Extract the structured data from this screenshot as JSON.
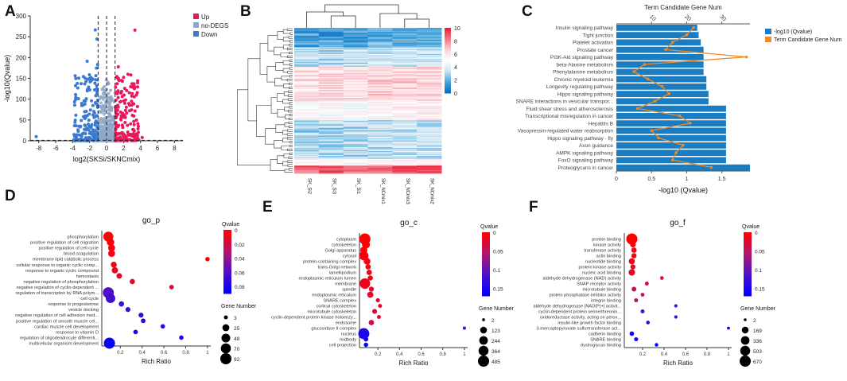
{
  "panel_labels": [
    "A",
    "B",
    "C",
    "D",
    "E",
    "F"
  ],
  "chart_data": [
    {
      "panel": "A",
      "type": "scatter",
      "title": "",
      "xlabel": "log2(SKSi/SKNCmix)",
      "ylabel": "-log10(Qvalue)",
      "xlim": [
        -9,
        9
      ],
      "ylim": [
        0,
        300
      ],
      "xticks": [
        "-8",
        "-6",
        "-4",
        "-2",
        "0",
        "2",
        "4",
        "6",
        "8"
      ],
      "yticks": [
        "0",
        "50",
        "100",
        "150",
        "200",
        "250",
        "300"
      ],
      "threshold_x": [
        -1,
        1
      ],
      "threshold_y": 1.3,
      "legend": [
        {
          "label": "Up",
          "color": "#e8185a"
        },
        {
          "label": "no-DEGS",
          "color": "#8fa8c8"
        },
        {
          "label": "Down",
          "color": "#3a7ad1"
        }
      ]
    },
    {
      "panel": "B",
      "type": "heatmap",
      "columns": [
        "SK_Si2",
        "SK_Si3",
        "SK_Si1",
        "SK_NCmix1",
        "SK_NCmix3",
        "SK_NCmix2"
      ],
      "colorbar_ticks": [
        "10",
        "8",
        "6",
        "4",
        "2",
        "0"
      ],
      "colorbar_range": [
        0,
        10
      ]
    },
    {
      "panel": "C",
      "type": "bar",
      "title": "Term Candidate Gene Num",
      "xlabel": "-log10 (Qvalue)",
      "xticks": [
        "0",
        "0.5",
        "1",
        "1.5"
      ],
      "top_ticks": [
        "10",
        "20",
        "30"
      ],
      "xlim": [
        0,
        1.9
      ],
      "top_lim": [
        0,
        38
      ],
      "legend": [
        "-log10 (Qvalue)",
        "Term Candidate Gene Num"
      ],
      "colors": {
        "bar": "#1a7cc1",
        "line": "#f08a24"
      },
      "categories": [
        "Insulin signaling pathway",
        "Tight junction",
        "Platelet activation",
        "Prostate cancer",
        "PI3K-Akt signaling pathway",
        "beta-Alanine metabolism",
        "Phenylalanine metabolism",
        "Chronic myeloid leukemia",
        "Longevity regulating pathway",
        "Hippo signaling pathway",
        "SNARE interactions in vesicular transpor...",
        "Fluid shear stress and atherosclerosis",
        "Transcriptional misregulation in cancer",
        "Hepatitis B",
        "Vasopressin-regulated water reabsorption",
        "Hippo signaling pathway - fly",
        "Axon guidance",
        "AMPK signaling pathway",
        "FoxO signaling pathway",
        "Proteoglycans in cancer"
      ],
      "values": [
        1.15,
        1.17,
        1.2,
        1.24,
        1.24,
        1.24,
        1.24,
        1.28,
        1.28,
        1.31,
        1.31,
        1.56,
        1.56,
        1.56,
        1.56,
        1.56,
        1.56,
        1.56,
        1.56,
        1.9
      ],
      "gene_num": [
        22,
        20,
        16,
        14,
        37,
        8,
        5,
        9,
        13,
        15,
        11,
        6,
        18,
        21,
        10,
        12,
        19,
        17,
        16,
        27
      ]
    },
    {
      "panel": "D",
      "type": "scatter",
      "title": "go_p",
      "xlabel": "Rich Ratio",
      "xticks": [
        "0.2",
        "0.4",
        "0.6",
        "0.8",
        "1"
      ],
      "xlim": [
        0.03,
        1.03
      ],
      "cbar_title": "Qvalue",
      "cbar_ticks": [
        "0",
        "0.02",
        "0.04",
        "0.06",
        "0.08"
      ],
      "cbar_max": 0.09,
      "size_title": "Gene Number",
      "size_ticks": [
        3,
        25,
        48,
        70,
        92
      ],
      "size_max": 92,
      "terms": [
        "phosphorylation",
        "positive regulation of cell migration",
        "positive regulation of cell cycle",
        "blood coagulation",
        "membrane lipid catabolic process",
        "cellular response to organic cyclic comp...",
        "response to organic cyclic compound",
        "hemostasis",
        "negative regulation of phosphorylation",
        "negative regulation of cyclin-dependent ...",
        "regulation of transcription by RNA polym...",
        "cell cycle",
        "response to progesterone",
        "vesicle docking",
        "negative regulation of cell adhesion med...",
        "positive regulation of smooth muscle cel...",
        "cardiac muscle cell development",
        "response to vitamin D",
        "regulation of oligodendrocyte differenti...",
        "multicellular organism development"
      ],
      "rich": [
        0.09,
        0.11,
        0.12,
        0.12,
        1.0,
        0.14,
        0.15,
        0.19,
        0.31,
        0.67,
        0.09,
        0.11,
        0.21,
        0.27,
        0.39,
        0.41,
        0.59,
        0.34,
        0.76,
        0.1
      ],
      "q": [
        0.001,
        0.002,
        0.003,
        0.004,
        0.0,
        0.006,
        0.008,
        0.01,
        0.012,
        0.015,
        0.06,
        0.065,
        0.068,
        0.07,
        0.072,
        0.074,
        0.076,
        0.078,
        0.08,
        0.088
      ],
      "genes": [
        70,
        30,
        25,
        25,
        5,
        15,
        18,
        12,
        10,
        6,
        90,
        60,
        10,
        8,
        8,
        6,
        5,
        6,
        5,
        92
      ]
    },
    {
      "panel": "E",
      "type": "scatter",
      "title": "go_c",
      "xlabel": "Rich Ratio",
      "xticks": [
        "0.2",
        "0.4",
        "0.6",
        "0.8",
        "1"
      ],
      "xlim": [
        0.03,
        1.03
      ],
      "cbar_title": "Qvalue",
      "cbar_ticks": [
        "0",
        "0.05",
        "0.1",
        "0.15"
      ],
      "cbar_max": 0.17,
      "size_title": "Gene Number",
      "size_ticks": [
        2,
        123,
        244,
        364,
        485
      ],
      "size_max": 485,
      "terms": [
        "cytoplasm",
        "cytoskeleton",
        "Golgi apparatus",
        "cytosol",
        "protein-containing complex",
        "trans-Golgi network",
        "lamellipodium",
        "endoplasmic reticulum lumen",
        "membrane",
        "spindle",
        "endoplasmic reticulum",
        "SNARE complex",
        "cortical cytoskeleton",
        "microtubule cytoskeleton",
        "cyclin-dependent protein kinase holoenzy...",
        "endosome",
        "glucosidase II complex",
        "nucleus",
        "midbody",
        "cell projection"
      ],
      "rich": [
        0.08,
        0.09,
        0.07,
        0.07,
        0.1,
        0.11,
        0.12,
        0.13,
        0.08,
        0.14,
        0.13,
        0.2,
        0.22,
        0.17,
        0.21,
        0.14,
        1.0,
        0.07,
        0.09,
        0.09
      ],
      "q": [
        0.0,
        0.001,
        0.003,
        0.005,
        0.008,
        0.01,
        0.012,
        0.014,
        0.016,
        0.018,
        0.02,
        0.022,
        0.025,
        0.028,
        0.03,
        0.035,
        0.12,
        0.15,
        0.16,
        0.165
      ],
      "genes": [
        485,
        200,
        150,
        300,
        120,
        60,
        55,
        50,
        420,
        45,
        90,
        20,
        18,
        40,
        15,
        60,
        5,
        480,
        30,
        25
      ]
    },
    {
      "panel": "F",
      "type": "scatter",
      "title": "go_f",
      "xlabel": "Rich Ratio",
      "xticks": [
        "0.2",
        "0.4",
        "0.6",
        "0.8",
        "1"
      ],
      "xlim": [
        0.03,
        1.03
      ],
      "cbar_title": "Qvalue",
      "cbar_ticks": [
        "0",
        "0.05",
        "0.1",
        "0.15"
      ],
      "cbar_max": 0.17,
      "size_title": "Gene Number",
      "size_ticks": [
        2,
        169,
        336,
        503,
        670
      ],
      "size_max": 670,
      "terms": [
        "protein binding",
        "kinase activity",
        "transferase activity",
        "actin binding",
        "nucleotide binding",
        "protein kinase activity",
        "nucleic acid binding",
        "aldehyde dehydrogenase (NAD) activity",
        "SNAP receptor activity",
        "microtubule binding",
        "protein phosphatase inhibitor activity",
        "integrin binding",
        "aldehyde dehydrogenase [NAD(P)+] activit...",
        "cyclin-dependent protein serine/threonin...",
        "oxidoreductase activity, acting on perox...",
        "insulin-like growth factor binding",
        "3-mercaptopyruvate sulfurtransferase act...",
        "cadherin binding",
        "SNARE binding",
        "dystroglycan binding"
      ],
      "rich": [
        0.1,
        0.11,
        0.12,
        0.12,
        0.1,
        0.11,
        0.1,
        0.38,
        0.24,
        0.12,
        0.2,
        0.14,
        0.51,
        0.2,
        0.51,
        0.25,
        1.0,
        0.1,
        0.14,
        0.33
      ],
      "q": [
        0.0,
        0.005,
        0.008,
        0.01,
        0.012,
        0.015,
        0.018,
        0.02,
        0.03,
        0.04,
        0.05,
        0.06,
        0.12,
        0.125,
        0.13,
        0.135,
        0.15,
        0.155,
        0.16,
        0.17
      ],
      "genes": [
        670,
        90,
        80,
        70,
        120,
        60,
        150,
        15,
        20,
        50,
        18,
        25,
        8,
        20,
        8,
        15,
        4,
        40,
        25,
        12
      ]
    }
  ]
}
